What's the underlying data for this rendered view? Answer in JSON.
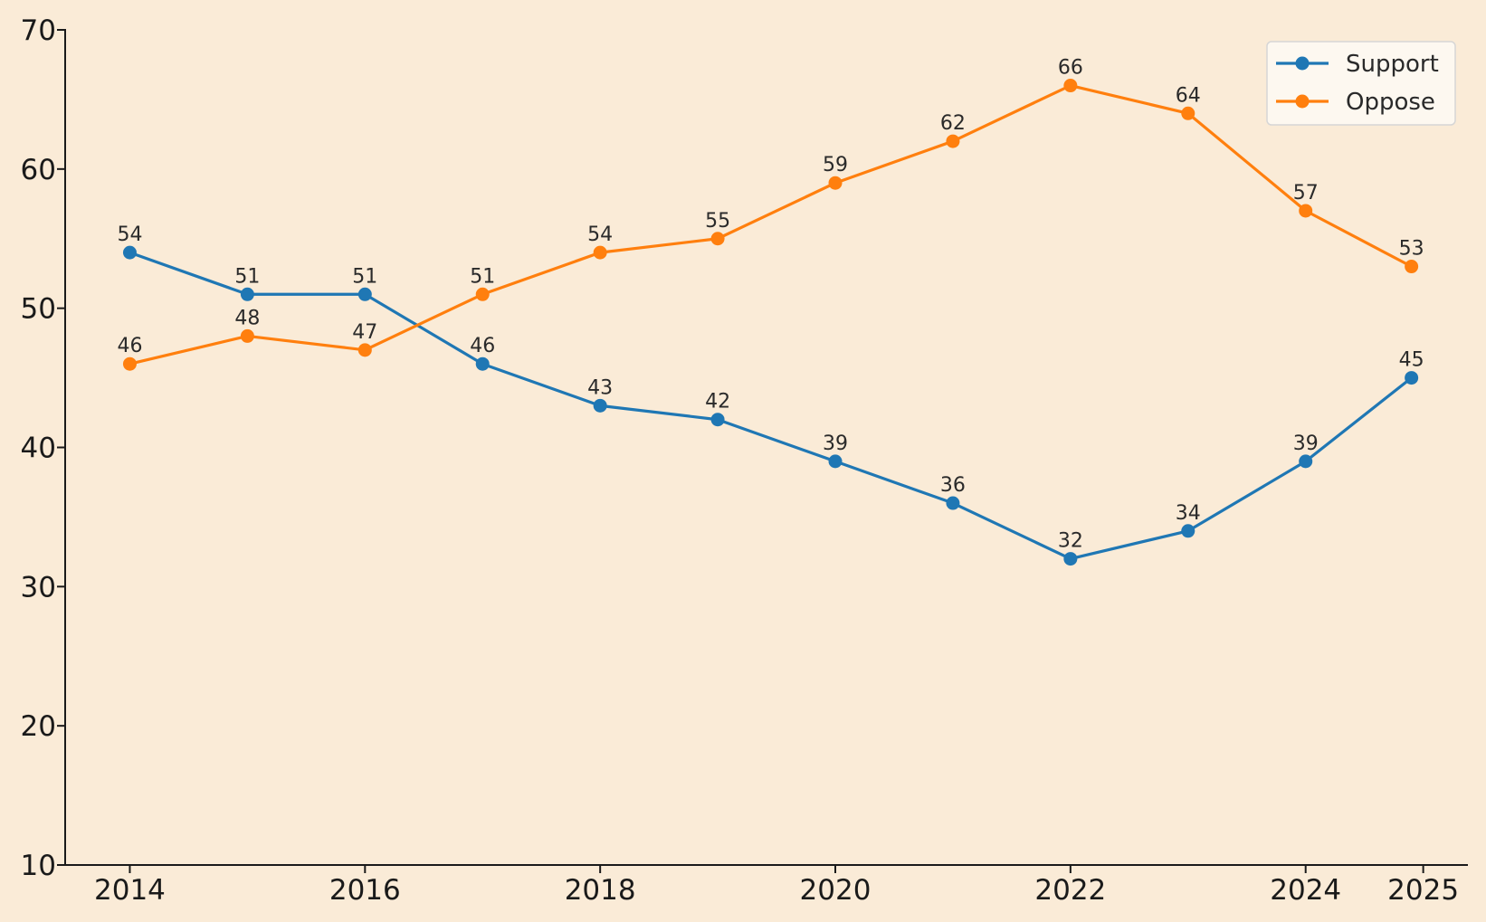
{
  "chart_data": {
    "type": "line",
    "title": "",
    "xlabel": "",
    "ylabel": "",
    "x": [
      2014,
      2015,
      2016,
      2017,
      2018,
      2019,
      2020,
      2021,
      2022,
      2023,
      2024,
      2024.9
    ],
    "xticks": [
      "2014",
      "2016",
      "2018",
      "2020",
      "2022",
      "2024",
      "2025"
    ],
    "xtick_values": [
      2014,
      2016,
      2018,
      2020,
      2022,
      2024,
      2025
    ],
    "yticks": [
      "10",
      "20",
      "30",
      "40",
      "50",
      "60",
      "70"
    ],
    "ylim": [
      10,
      70
    ],
    "xlim": [
      2013.45,
      2025.38
    ],
    "grid": false,
    "legend_position": "top-right",
    "series": [
      {
        "name": "Support",
        "color": "#1f77b4",
        "values": [
          54,
          51,
          51,
          46,
          43,
          42,
          39,
          36,
          32,
          34,
          39,
          45
        ],
        "labels": [
          "54",
          "51",
          "51",
          "46",
          "43",
          "42",
          "39",
          "36",
          "32",
          "34",
          "39",
          "45"
        ]
      },
      {
        "name": "Oppose",
        "color": "#ff7f0e",
        "values": [
          46,
          48,
          47,
          51,
          54,
          55,
          59,
          62,
          66,
          64,
          57,
          53
        ],
        "labels": [
          "46",
          "48",
          "47",
          "51",
          "54",
          "55",
          "59",
          "62",
          "66",
          "64",
          "57",
          "53"
        ]
      }
    ]
  }
}
